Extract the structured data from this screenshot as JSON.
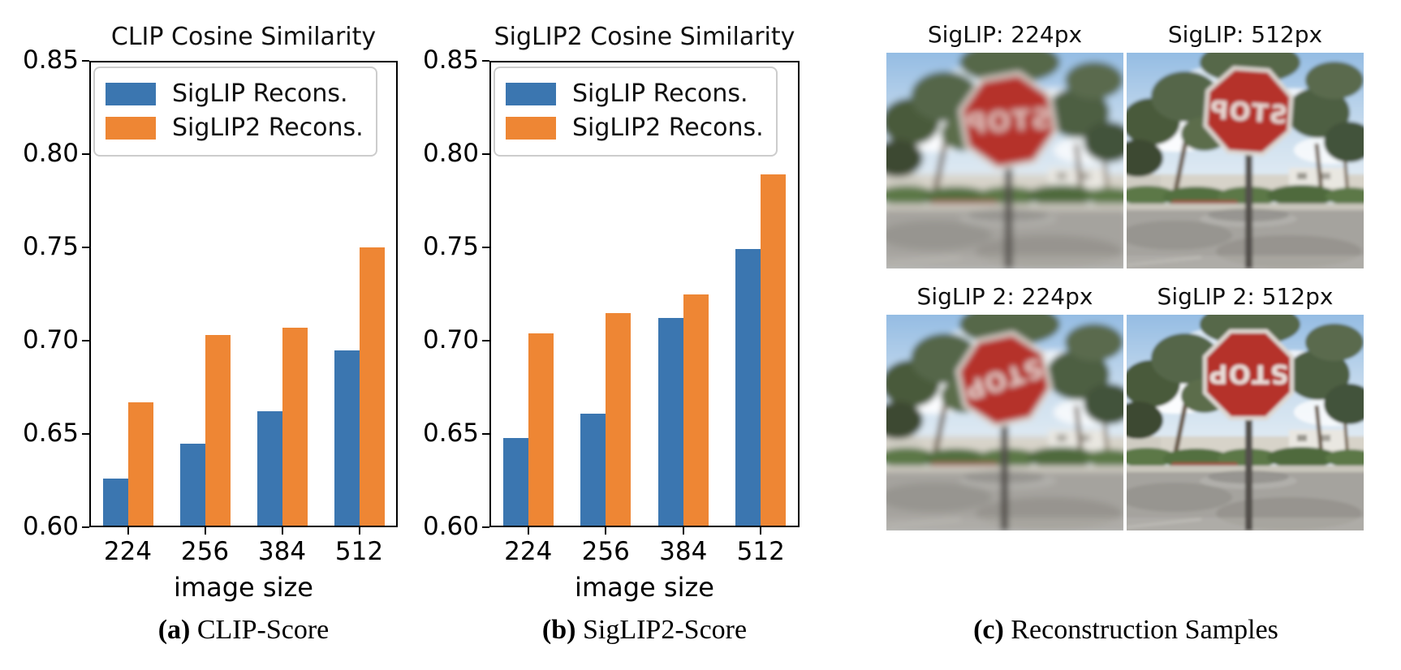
{
  "panels": {
    "a": {
      "label": "(a)",
      "caption": "CLIP-Score"
    },
    "b": {
      "label": "(b)",
      "caption": "SigLIP2-Score"
    },
    "c": {
      "label": "(c)",
      "caption": "Reconstruction Samples"
    }
  },
  "samples": [
    {
      "title": "SigLIP: 224px",
      "sign_text": "STOP",
      "sign_orientation": "mirrored",
      "detail": "low"
    },
    {
      "title": "SigLIP: 512px",
      "sign_text": "STOP",
      "sign_orientation": "mirrored",
      "detail": "high"
    },
    {
      "title": "SigLIP 2: 224px",
      "sign_text": "STOP",
      "sign_orientation": "upside-down",
      "detail": "low"
    },
    {
      "title": "SigLIP 2: 512px",
      "sign_text": "STOP",
      "sign_orientation": "upside-down",
      "detail": "high"
    }
  ],
  "chart_data": [
    {
      "type": "bar",
      "title": "CLIP Cosine Similarity",
      "categories": [
        "224",
        "256",
        "384",
        "512"
      ],
      "series": [
        {
          "name": "SigLIP Recons.",
          "color": "#3b76b0",
          "values": [
            0.626,
            0.645,
            0.662,
            0.695
          ]
        },
        {
          "name": "SigLIP2 Recons.",
          "color": "#ee8634",
          "values": [
            0.667,
            0.703,
            0.707,
            0.75
          ]
        }
      ],
      "xlabel": "image size",
      "ylim": [
        0.6,
        0.85
      ],
      "yticks": [
        0.6,
        0.65,
        0.7,
        0.75,
        0.8,
        0.85
      ],
      "legend_position": "upper left",
      "grid": false
    },
    {
      "type": "bar",
      "title": "SigLIP2 Cosine Similarity",
      "categories": [
        "224",
        "256",
        "384",
        "512"
      ],
      "series": [
        {
          "name": "SigLIP Recons.",
          "color": "#3b76b0",
          "values": [
            0.648,
            0.661,
            0.712,
            0.749
          ]
        },
        {
          "name": "SigLIP2 Recons.",
          "color": "#ee8634",
          "values": [
            0.704,
            0.715,
            0.725,
            0.789
          ]
        }
      ],
      "xlabel": "image size",
      "ylim": [
        0.6,
        0.85
      ],
      "yticks": [
        0.6,
        0.65,
        0.7,
        0.75,
        0.8,
        0.85
      ],
      "legend_position": "upper left",
      "grid": false
    }
  ]
}
